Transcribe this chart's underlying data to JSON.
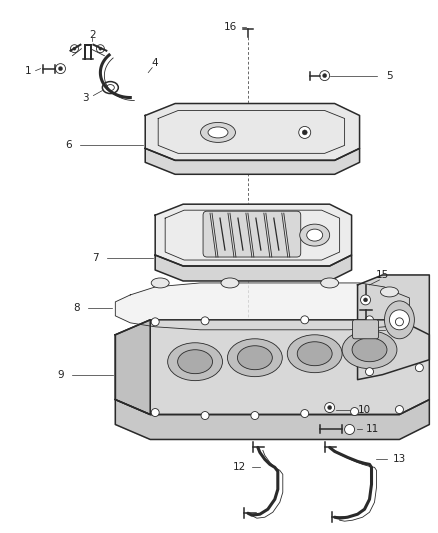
{
  "bg_color": "#ffffff",
  "fig_width": 4.38,
  "fig_height": 5.33,
  "dpi": 100,
  "lc": "#2a2a2a",
  "lw_main": 1.1,
  "lw_thin": 0.6,
  "fs": 7.5,
  "tc": "#222222"
}
